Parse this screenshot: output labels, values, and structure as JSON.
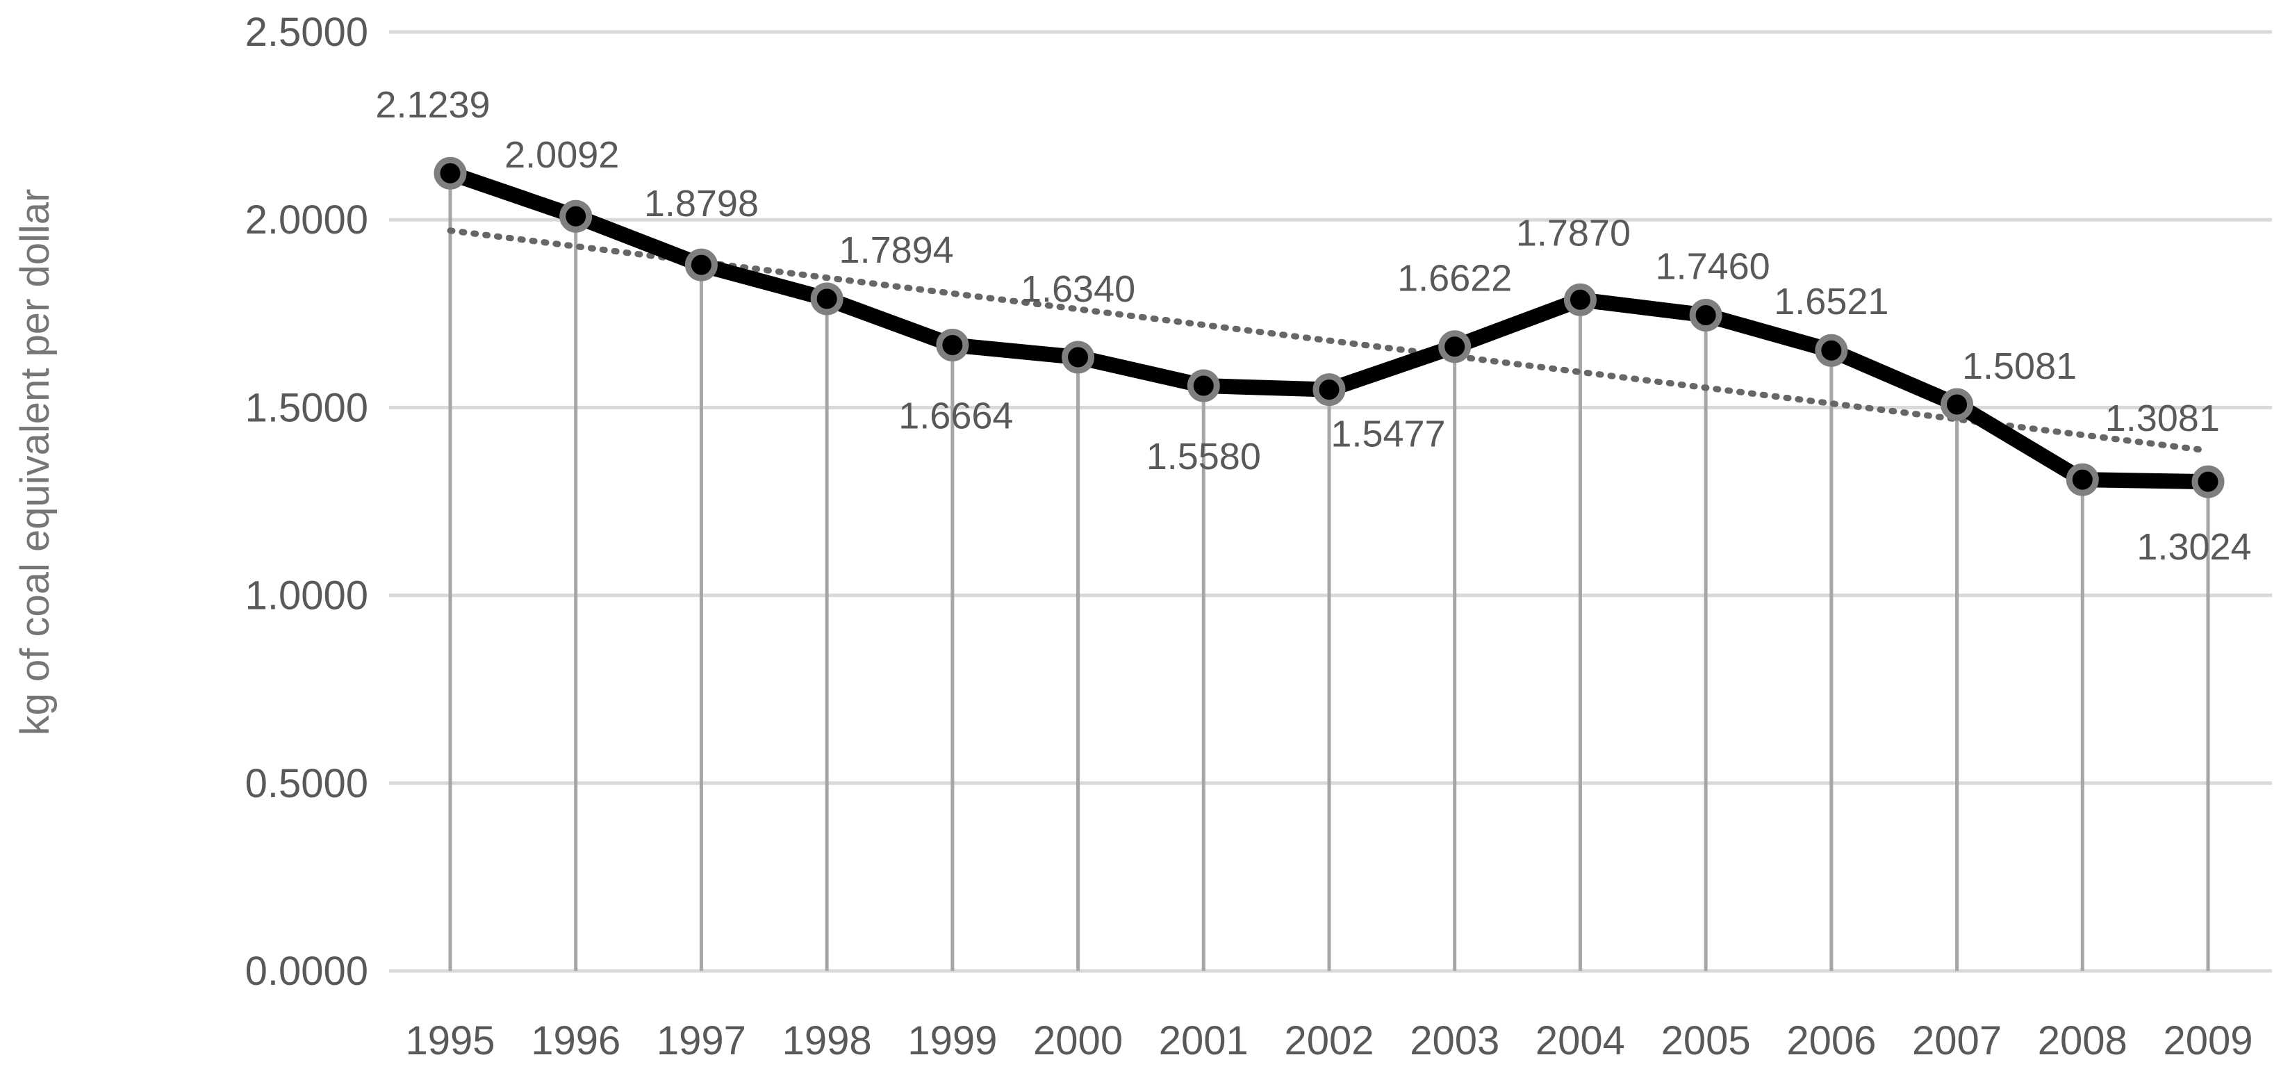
{
  "chart_data": {
    "type": "line",
    "title": "",
    "xlabel": "",
    "ylabel": "kg of coal equivalent per dollar",
    "ylim": [
      0,
      2.5
    ],
    "y_ticks": [
      "0.0000",
      "0.5000",
      "1.0000",
      "1.5000",
      "2.0000",
      "2.5000"
    ],
    "grid": "horizontal",
    "legend": "none",
    "categories": [
      "1995",
      "1996",
      "1997",
      "1998",
      "1999",
      "2000",
      "2001",
      "2002",
      "2003",
      "2004",
      "2005",
      "2006",
      "2007",
      "2008",
      "2009"
    ],
    "series": [
      {
        "values": [
          2.1239,
          2.0092,
          1.8798,
          1.7894,
          1.6664,
          1.634,
          1.558,
          1.5477,
          1.6622,
          1.787,
          1.746,
          1.6521,
          1.5081,
          1.3081,
          1.3024
        ],
        "data_labels": [
          "2.1239",
          "2.0092",
          "1.8798",
          "1.7894",
          "1.6664",
          "1.6340",
          "1.5580",
          "1.5477",
          "1.6622",
          "1.7870",
          "1.7460",
          "1.6521",
          "1.5081",
          "1.3081",
          "1.3024"
        ],
        "style": "thick solid line with circle markers and vertical drop lines",
        "color": "#000000"
      }
    ],
    "trendline": {
      "type": "linear",
      "style": "dotted",
      "color": "#666666"
    },
    "colors": {
      "line": "#000000",
      "marker_ring": "#7f7f7f",
      "drop_lines": "#a6a6a6",
      "grid": "#d9d9d9",
      "text": "#595959",
      "trend": "#666666"
    }
  }
}
